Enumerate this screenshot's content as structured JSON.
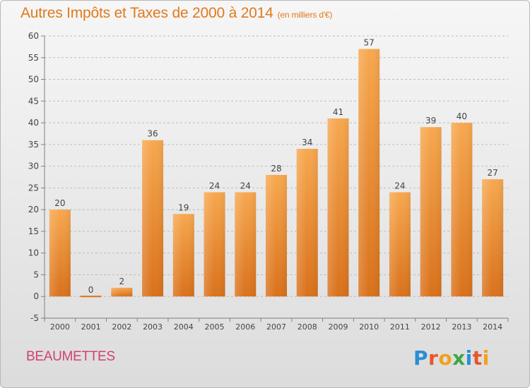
{
  "header": {
    "title": "Autres Impôts et Taxes de 2000 à 2014",
    "unit": "(en milliers d'€)"
  },
  "footer": {
    "city": "BEAUMETTES",
    "brand": "Proxiti"
  },
  "colors": {
    "bar_top": "#f7a84f",
    "bar_bottom": "#d9711b",
    "title": "#e07a1d",
    "city": "#d0416e",
    "grid": "#bdbdbd"
  },
  "chart_data": {
    "type": "bar",
    "categories": [
      "2000",
      "2001",
      "2002",
      "2003",
      "2004",
      "2005",
      "2006",
      "2007",
      "2008",
      "2009",
      "2010",
      "2011",
      "2012",
      "2013",
      "2014"
    ],
    "values": [
      20,
      0,
      2,
      36,
      19,
      24,
      24,
      28,
      34,
      41,
      57,
      24,
      39,
      40,
      27
    ],
    "data_labels": [
      "20",
      "0",
      "2",
      "36",
      "19",
      "24",
      "24",
      "28",
      "34",
      "41",
      "57",
      "24",
      "39",
      "40",
      "27"
    ],
    "ylim": [
      -5,
      60
    ],
    "yticks": [
      -5,
      0,
      5,
      10,
      15,
      20,
      25,
      30,
      35,
      40,
      45,
      50,
      55,
      60
    ],
    "grid": "horizontal dashed",
    "legend": "none"
  }
}
